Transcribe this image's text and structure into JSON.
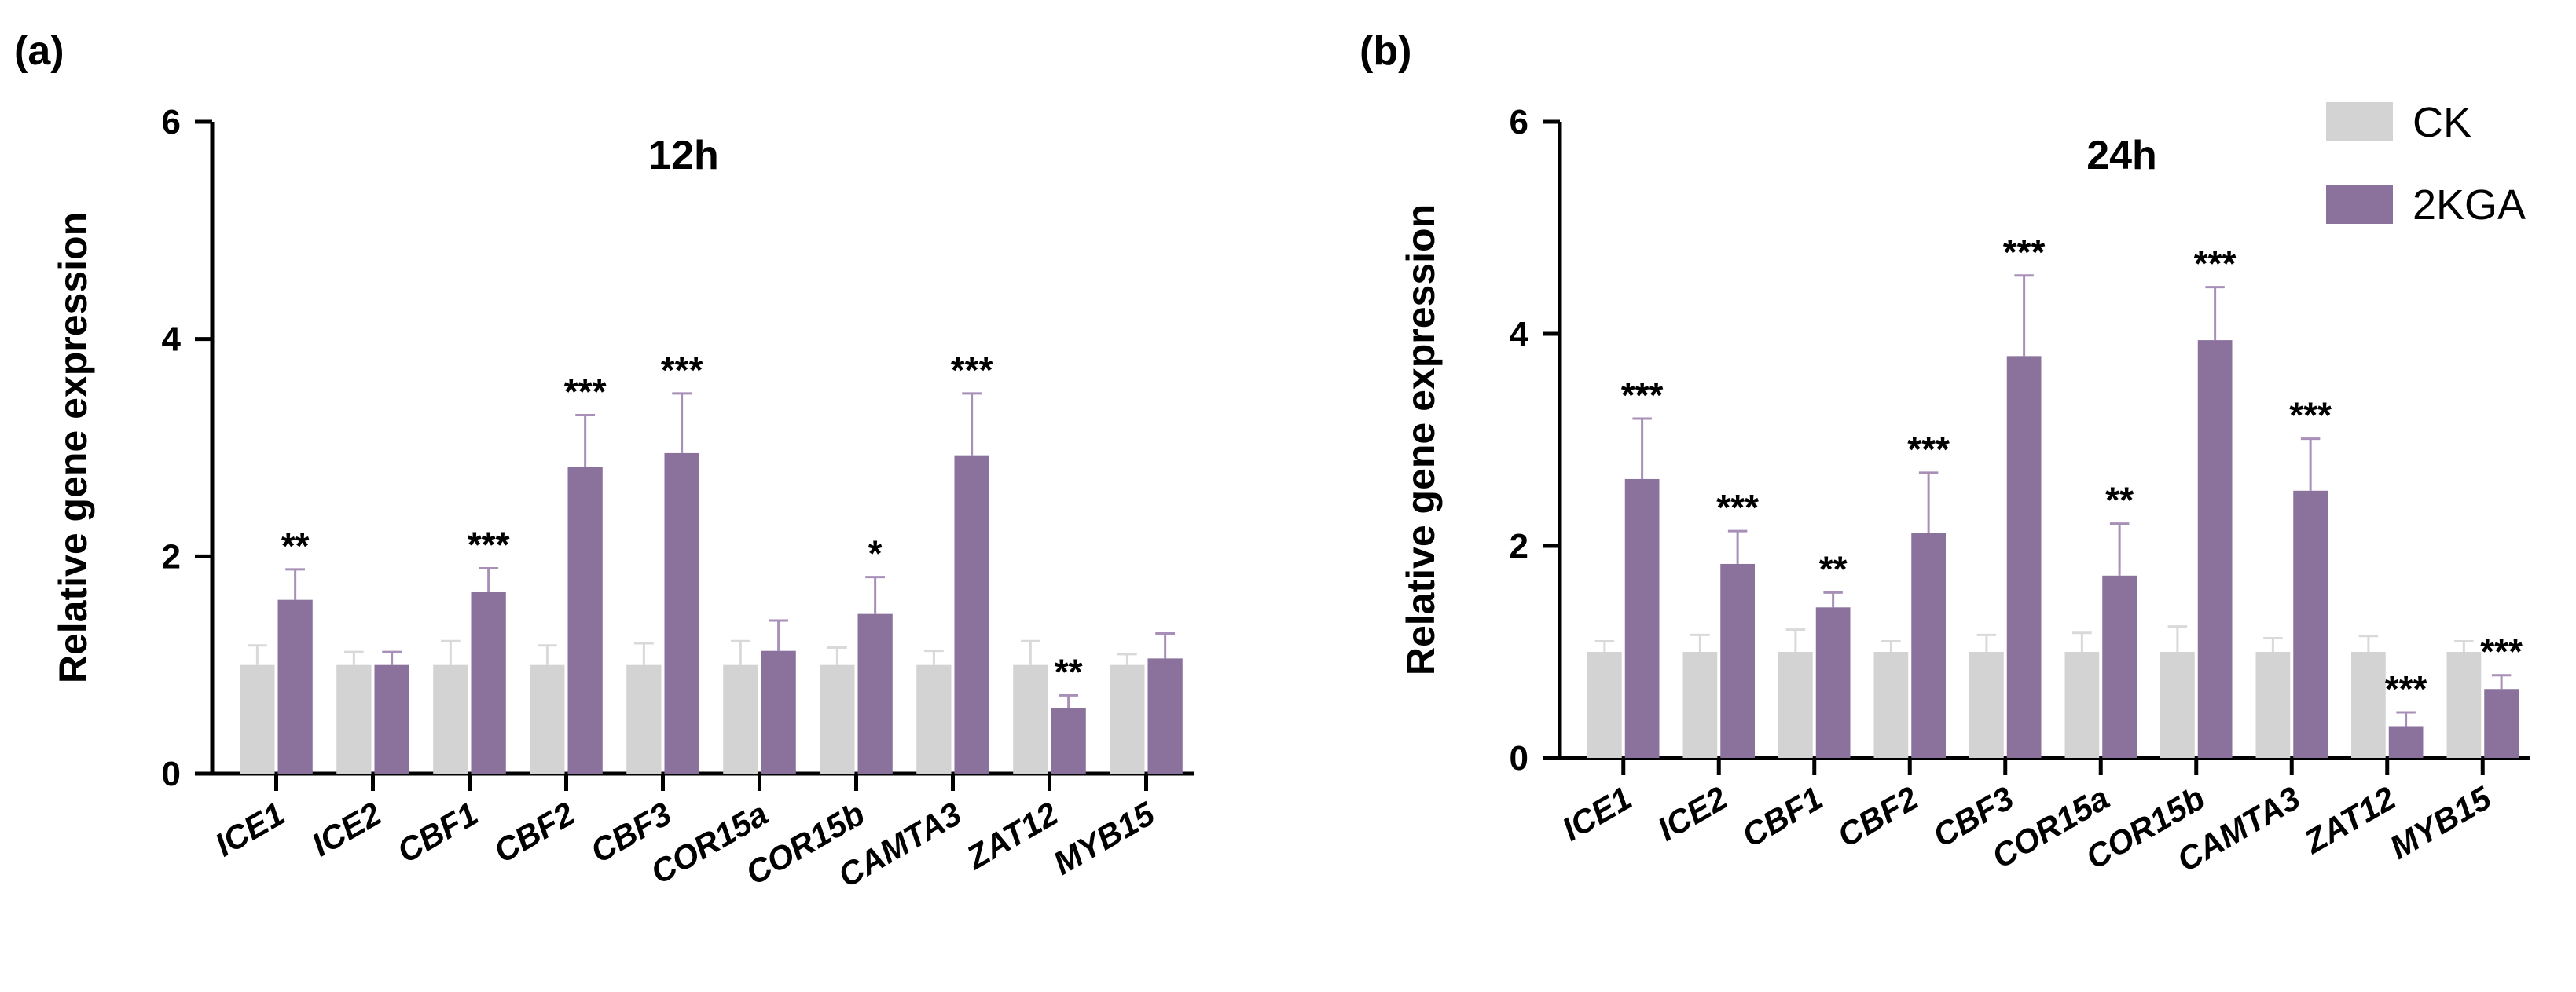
{
  "legend": [
    {
      "name": "CK",
      "color": "#d3d3d3"
    },
    {
      "name": "2KGA",
      "color": "#8b729c"
    }
  ],
  "colors": {
    "ck": "#d3d3d3",
    "kga": "#8b729c",
    "kga_err": "#a88fb8",
    "ck_err": "#d9d9d9",
    "axis": "#000000"
  },
  "chart_data": [
    {
      "type": "bar",
      "panel_label": "(a)",
      "title": "12h",
      "xlabel": "",
      "ylabel": "Relative gene expression",
      "ylim": [
        0,
        6
      ],
      "yticks": [
        "0",
        "2",
        "4",
        "6"
      ],
      "grid": false,
      "legend_position": "none",
      "categories": [
        "ICE1",
        "ICE2",
        "CBF1",
        "CBF2",
        "CBF3",
        "COR15a",
        "COR15b",
        "CAMTA3",
        "ZAT12",
        "MYB15"
      ],
      "series": [
        {
          "name": "CK",
          "values": [
            1,
            1,
            1,
            1,
            1,
            1,
            1,
            1,
            1,
            1
          ],
          "errors": [
            0.18,
            0.12,
            0.22,
            0.18,
            0.2,
            0.22,
            0.16,
            0.13,
            0.22,
            0.1
          ]
        },
        {
          "name": "2KGA",
          "values": [
            1.6,
            1.0,
            1.67,
            2.82,
            2.95,
            1.13,
            1.47,
            2.93,
            0.6,
            1.06
          ],
          "errors": [
            0.28,
            0.12,
            0.22,
            0.48,
            0.55,
            0.28,
            0.34,
            0.57,
            0.12,
            0.23
          ]
        }
      ],
      "significance": [
        "**",
        "",
        "***",
        "***",
        "***",
        "",
        "*",
        "***",
        "**",
        ""
      ]
    },
    {
      "type": "bar",
      "panel_label": "(b)",
      "title": "24h",
      "xlabel": "",
      "ylabel": "Relative gene expression",
      "ylim": [
        0,
        6
      ],
      "yticks": [
        "0",
        "2",
        "4",
        "6"
      ],
      "grid": false,
      "legend_position": "top-right",
      "categories": [
        "ICE1",
        "ICE2",
        "CBF1",
        "CBF2",
        "CBF3",
        "COR15a",
        "COR15b",
        "CAMTA3",
        "ZAT12",
        "MYB15"
      ],
      "series": [
        {
          "name": "CK",
          "values": [
            1,
            1,
            1,
            1,
            1,
            1,
            1,
            1,
            1,
            1
          ],
          "errors": [
            0.1,
            0.16,
            0.21,
            0.1,
            0.16,
            0.18,
            0.24,
            0.13,
            0.15,
            0.1
          ]
        },
        {
          "name": "2KGA",
          "values": [
            2.63,
            1.83,
            1.42,
            2.12,
            3.79,
            1.72,
            3.94,
            2.52,
            0.3,
            0.65
          ],
          "errors": [
            0.57,
            0.31,
            0.14,
            0.57,
            0.76,
            0.49,
            0.5,
            0.49,
            0.13,
            0.13
          ]
        }
      ],
      "significance": [
        "***",
        "***",
        "**",
        "***",
        "***",
        "**",
        "***",
        "***",
        "***",
        "***"
      ]
    }
  ]
}
